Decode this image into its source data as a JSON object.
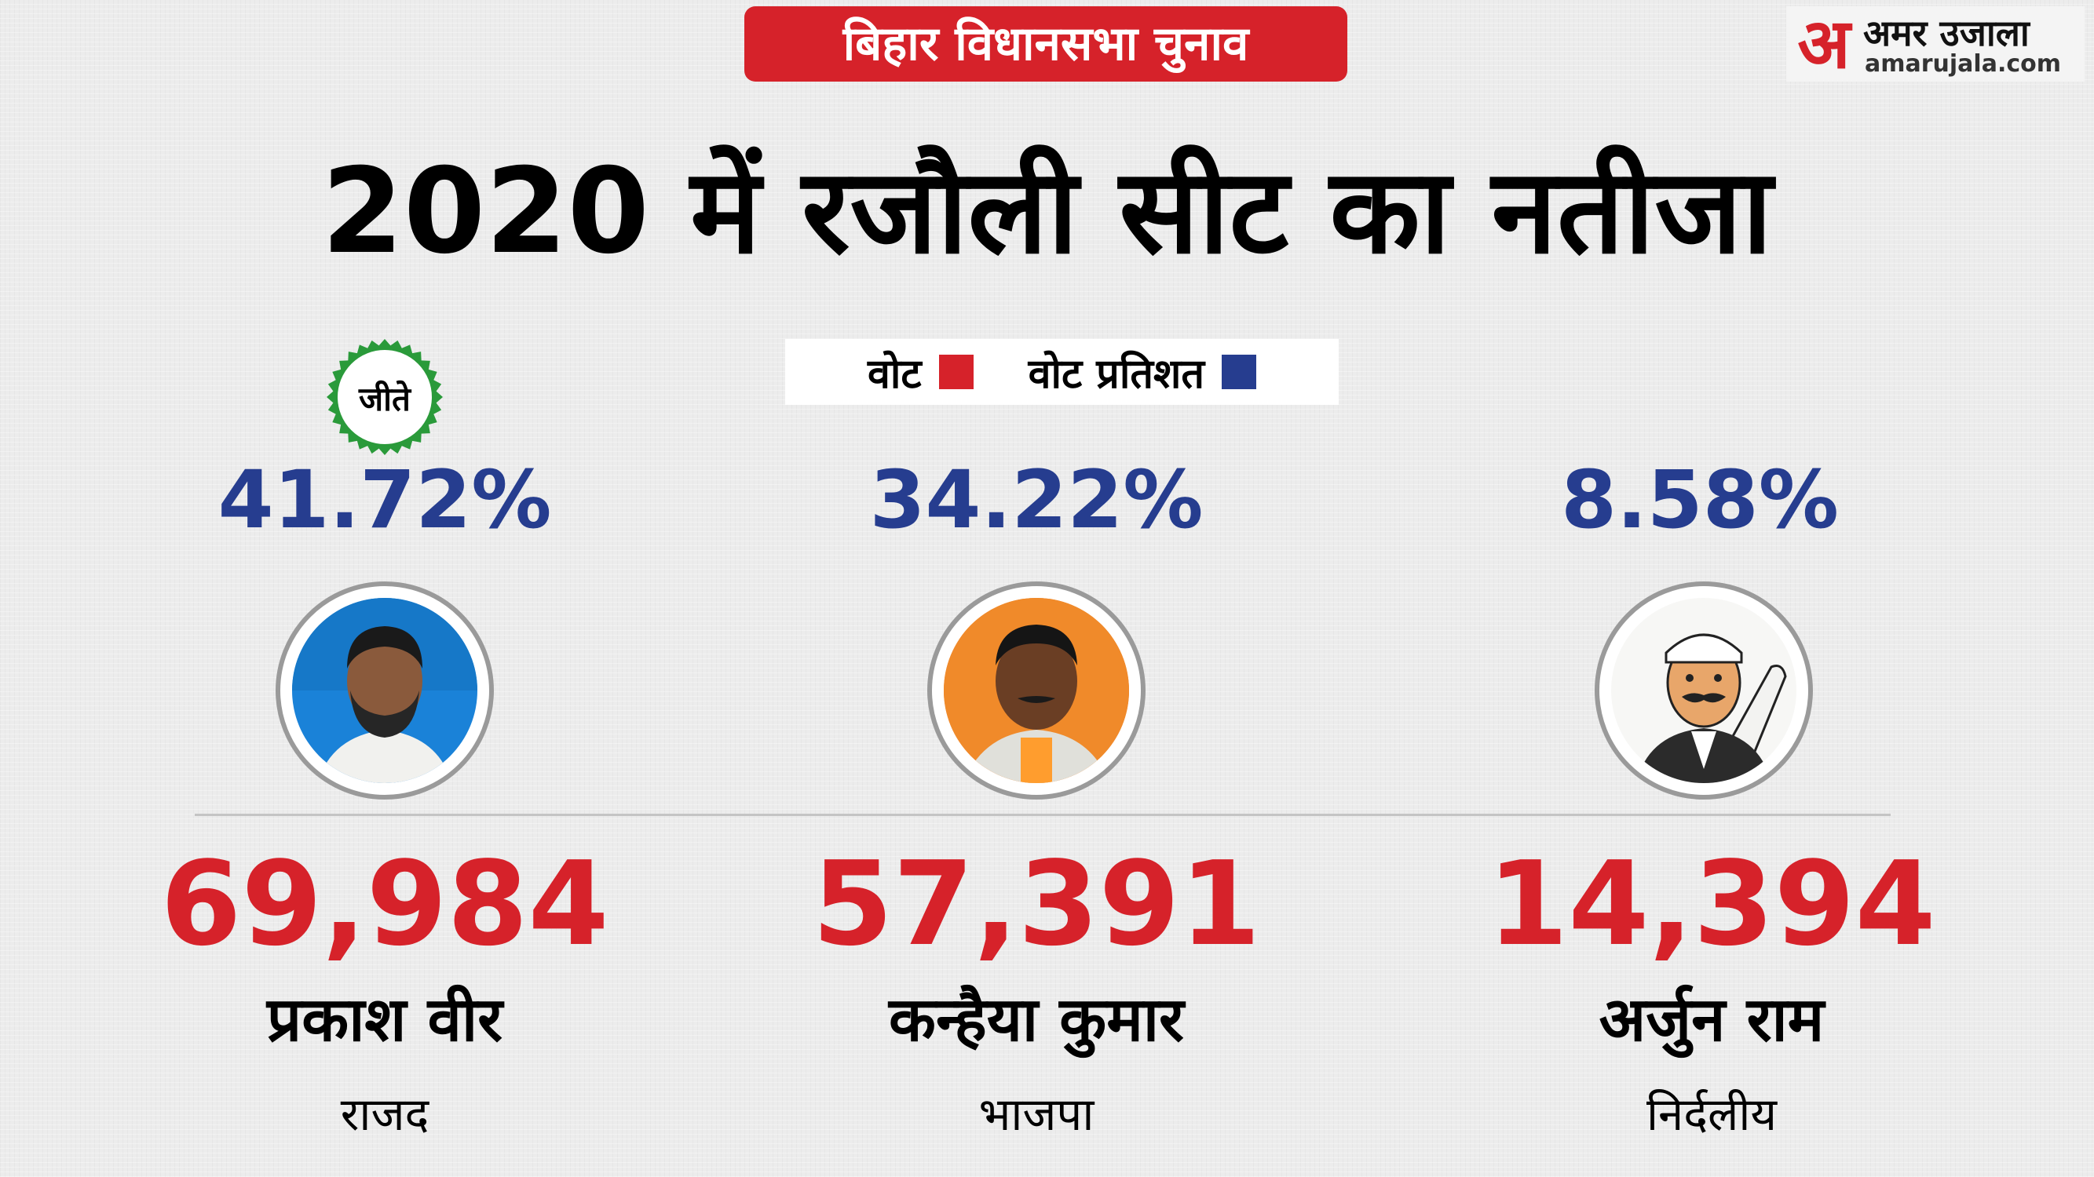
{
  "header": {
    "banner": "बिहार विधानसभा चुनाव",
    "title": "2020 में रजौली सीट का नतीजा"
  },
  "logo": {
    "mark": "अ",
    "name_hi": "अमर उजाला",
    "name_en": "amarujala.com"
  },
  "legend": {
    "votes_label": "वोट",
    "percent_label": "वोट प्रतिशत"
  },
  "winner_badge": "जीते",
  "colors": {
    "votes": "#d6222a",
    "percent": "#263d8f",
    "winner_badge": "#2a9a3a"
  },
  "chart_data": {
    "type": "table",
    "columns": [
      "candidate",
      "party",
      "votes",
      "vote_percent"
    ],
    "candidates": [
      {
        "name": "प्रकाश वीर",
        "party": "राजद",
        "votes": "69,984",
        "vote_percent": "41.72%",
        "winner": true,
        "photo_icon": "candidate-photo"
      },
      {
        "name": "कन्हैया कुमार",
        "party": "भाजपा",
        "votes": "57,391",
        "vote_percent": "34.22%",
        "winner": false,
        "photo_icon": "candidate-photo"
      },
      {
        "name": "अर्जुन राम",
        "party": "निर्दलीय",
        "votes": "14,394",
        "vote_percent": "8.58%",
        "winner": false,
        "photo_icon": "cartoon-politician-icon"
      }
    ]
  }
}
